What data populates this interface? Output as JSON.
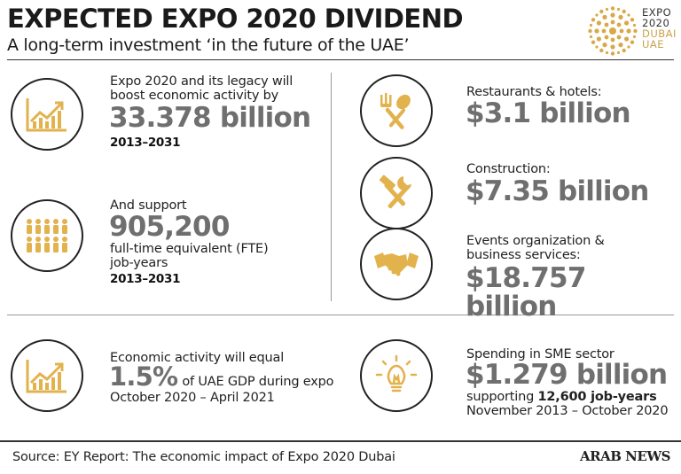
{
  "header": {
    "title": "EXPECTED EXPO 2020 DIVIDEND",
    "subtitle": "A long-term investment ‘in the future of the UAE’"
  },
  "logo": {
    "line1": "EXPO",
    "line2": "2020",
    "line3": "DUBAI",
    "line4": "UAE"
  },
  "left": {
    "economic": {
      "intro": "Expo 2020 and its legacy will boost economic activity by",
      "value": "33.378 billion",
      "period": "2013–2031"
    },
    "jobs": {
      "intro": "And support",
      "value": "905,200",
      "desc": "full-time equivalent (FTE) job-years",
      "period": "2013–2031"
    },
    "gdp": {
      "intro": "Economic activity will equal",
      "value": "1.5%",
      "desc": "of UAE GDP during expo",
      "period": "October 2020 – April 2021"
    }
  },
  "right": {
    "restaurants": {
      "label": "Restaurants & hotels:",
      "value": "$3.1 billion"
    },
    "construction": {
      "label": "Construction:",
      "value": "$7.35 billion"
    },
    "events": {
      "label": "Events organization & business services:",
      "value": "$18.757 billion"
    },
    "sme": {
      "label": "Spending in SME sector",
      "value": "$1.279 billion",
      "supporting": "supporting",
      "jobs": "12,600 job-years",
      "period": "November 2013 – October 2020"
    }
  },
  "footer": {
    "source": "Source: EY Report: The economic impact of Expo 2020 Dubai",
    "brand": "ARAB NEWS"
  },
  "colors": {
    "gold": "#e2b24d",
    "value_gray": "#6f6f6f"
  },
  "icons": [
    "chart-growth-icon",
    "people-icon",
    "fork-spoon-icon",
    "hammer-wrench-icon",
    "handshake-icon",
    "lightbulb-icon"
  ]
}
